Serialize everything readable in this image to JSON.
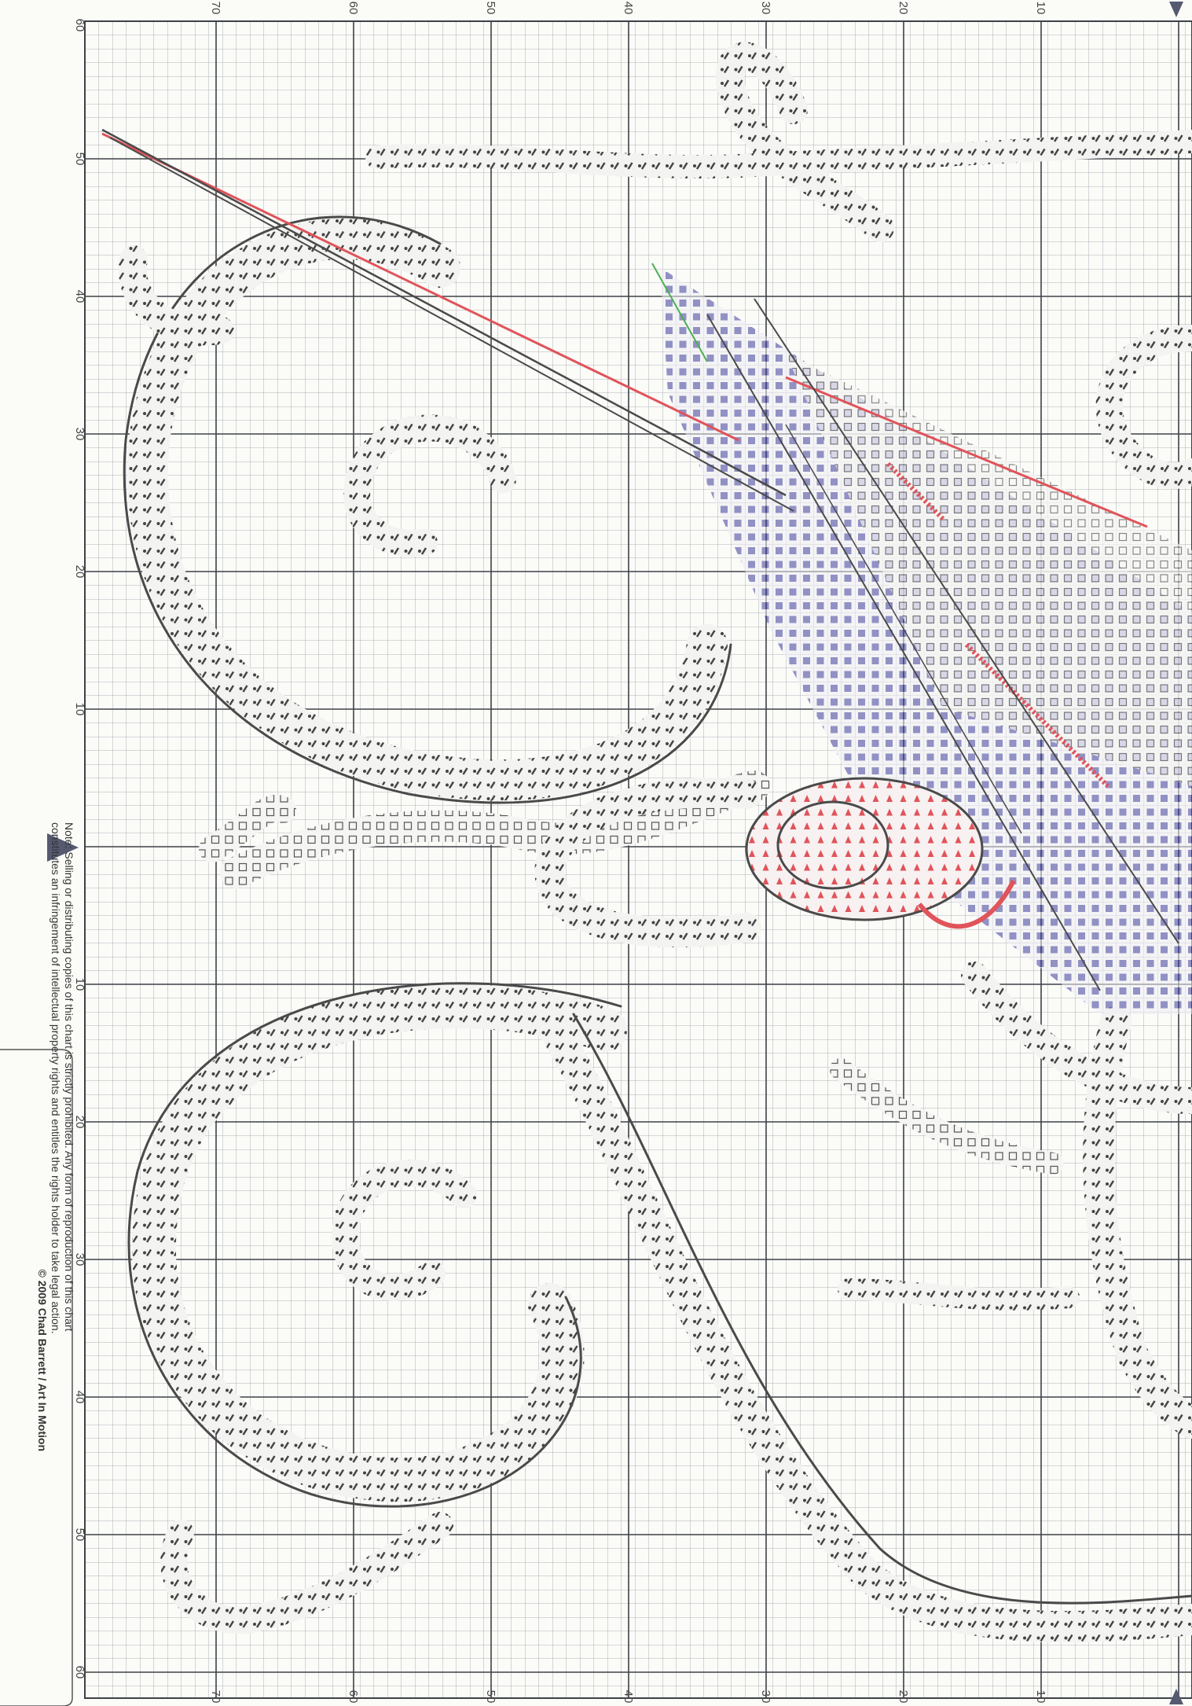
{
  "axes": {
    "top_ticks": [
      "70",
      "60",
      "50",
      "40",
      "30",
      "20",
      "10"
    ],
    "bottom_ticks": [
      "70",
      "60",
      "50",
      "40",
      "30",
      "20",
      "10"
    ],
    "left_ticks_upper": [
      "60",
      "50",
      "40",
      "30",
      "20",
      "10"
    ],
    "left_ticks_lower": [
      "10",
      "20",
      "30",
      "40",
      "50",
      "60"
    ]
  },
  "note": {
    "line1": "Note: Selling or distributing copies of this chart is strictly prohibited.  Any form of reproduction of this chart",
    "line2": "constitutes an infringement of intellectual property rights and entitles the rights holder to take legal action.",
    "copyright": "© 2009 Chad Barrett / Art In Motion"
  },
  "colors": {
    "grid_minor": "#9aa0a6",
    "grid_major": "#3d4247",
    "motif": "#4a4a4a",
    "accent_red": "#e0545a",
    "accent_blue": "#3b3b9a",
    "accent_green": "#4caf50",
    "marker": "#555a70"
  },
  "icons": [
    "center-marker-arrow-left",
    "center-marker-arrow-top",
    "center-marker-arrow-bottom"
  ]
}
